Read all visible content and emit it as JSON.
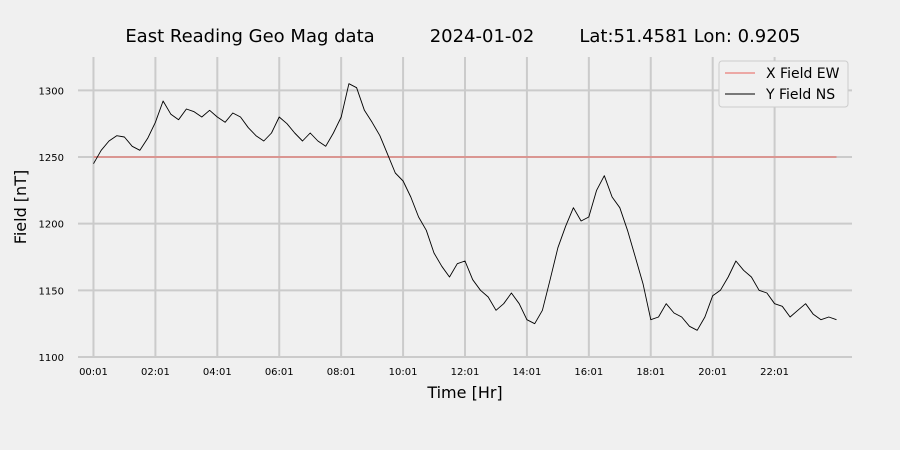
{
  "chart_data": {
    "type": "line",
    "title_parts": [
      "East Reading Geo Mag data",
      "2024-01-02",
      "Lat:51.4581  Lon: 0.9205"
    ],
    "xlabel": "Time  [Hr]",
    "ylabel": "Field  [nT]",
    "xlim": [
      -0.5,
      24.5
    ],
    "ylim": [
      1100,
      1325
    ],
    "x_ticks": [
      0,
      2,
      4,
      6,
      8,
      10,
      12,
      14,
      16,
      18,
      20,
      22
    ],
    "x_tick_labels": [
      "00:01",
      "02:01",
      "04:01",
      "06:01",
      "08:01",
      "10:01",
      "12:01",
      "14:01",
      "16:01",
      "18:01",
      "20:01",
      "22:01"
    ],
    "y_ticks": [
      1100,
      1150,
      1200,
      1250,
      1300
    ],
    "y_tick_labels": [
      "1100",
      "1150",
      "1200",
      "1250",
      "1300"
    ],
    "grid": true,
    "legend_position": "top-right",
    "series": [
      {
        "name": "X Field EW",
        "color": "#e8615a",
        "x": [
          0,
          24
        ],
        "y": [
          1250,
          1250
        ]
      },
      {
        "name": "Y Field NS",
        "color": "#000000",
        "x": [
          0,
          0.25,
          0.5,
          0.75,
          1.0,
          1.25,
          1.5,
          1.75,
          2.0,
          2.25,
          2.5,
          2.75,
          3.0,
          3.25,
          3.5,
          3.75,
          4.0,
          4.25,
          4.5,
          4.75,
          5.0,
          5.25,
          5.5,
          5.75,
          6.0,
          6.25,
          6.5,
          6.75,
          7.0,
          7.25,
          7.5,
          7.75,
          8.0,
          8.25,
          8.5,
          8.75,
          9.0,
          9.25,
          9.5,
          9.75,
          10.0,
          10.25,
          10.5,
          10.75,
          11.0,
          11.25,
          11.5,
          11.75,
          12.0,
          12.25,
          12.5,
          12.75,
          13.0,
          13.25,
          13.5,
          13.75,
          14.0,
          14.25,
          14.5,
          14.75,
          15.0,
          15.25,
          15.5,
          15.75,
          16.0,
          16.25,
          16.5,
          16.75,
          17.0,
          17.25,
          17.5,
          17.75,
          18.0,
          18.25,
          18.5,
          18.75,
          19.0,
          19.25,
          19.5,
          19.75,
          20.0,
          20.25,
          20.5,
          20.75,
          21.0,
          21.25,
          21.5,
          21.75,
          22.0,
          22.25,
          22.5,
          22.75,
          23.0,
          23.25,
          23.5,
          23.75,
          24.0
        ],
        "y": [
          1245,
          1255,
          1262,
          1266,
          1265,
          1258,
          1255,
          1264,
          1276,
          1292,
          1282,
          1278,
          1286,
          1284,
          1280,
          1285,
          1280,
          1276,
          1283,
          1280,
          1272,
          1266,
          1262,
          1268,
          1280,
          1275,
          1268,
          1262,
          1268,
          1262,
          1258,
          1268,
          1280,
          1305,
          1302,
          1285,
          1276,
          1266,
          1252,
          1238,
          1232,
          1220,
          1205,
          1195,
          1178,
          1168,
          1160,
          1170,
          1172,
          1158,
          1150,
          1145,
          1135,
          1140,
          1148,
          1140,
          1128,
          1125,
          1135,
          1158,
          1182,
          1198,
          1212,
          1202,
          1205,
          1225,
          1236,
          1220,
          1212,
          1195,
          1175,
          1155,
          1128,
          1130,
          1140,
          1133,
          1130,
          1123,
          1120,
          1130,
          1146,
          1150,
          1160,
          1172,
          1165,
          1160,
          1150,
          1148,
          1140,
          1138,
          1130,
          1135,
          1140,
          1132,
          1128,
          1130,
          1128
        ]
      }
    ]
  }
}
